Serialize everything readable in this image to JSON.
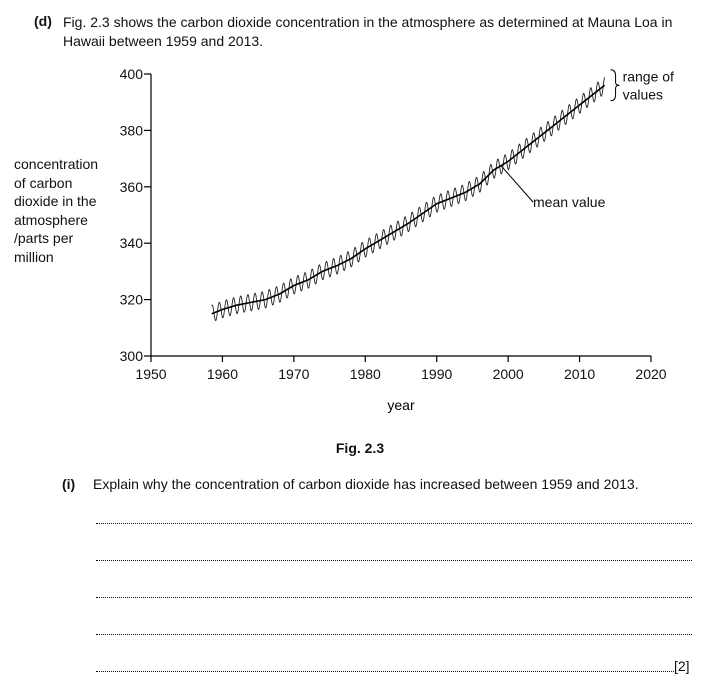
{
  "question": {
    "part_label": "(d)",
    "intro_text": "Fig. 2.3 shows the carbon dioxide concentration in the atmosphere as determined at Mauna Loa in Hawaii between 1959 and 2013.",
    "figure_caption": "Fig. 2.3",
    "subpart_label": "(i)",
    "subpart_text": "Explain why the concentration of carbon dioxide has increased between 1959 and 2013.",
    "answer_line_count": 5,
    "marks_label": "[2]"
  },
  "chart_data": {
    "type": "line",
    "xlabel": "year",
    "ylabel": "concentration\nof carbon\ndioxide in the\natmosphere\n/parts per\nmillion",
    "xlim": [
      1950,
      2020
    ],
    "ylim": [
      300,
      400
    ],
    "x_ticks": [
      1950,
      1960,
      1970,
      1980,
      1990,
      2000,
      2010,
      2020
    ],
    "y_ticks": [
      300,
      320,
      340,
      360,
      380,
      400
    ],
    "annotations": [
      {
        "text": "range of\nvalues",
        "points_to": "seasonal oscillation"
      },
      {
        "text": "mean value",
        "points_to": "mean line"
      }
    ],
    "series": [
      {
        "name": "mean value",
        "x": [
          1958.5,
          1960,
          1962,
          1964,
          1966,
          1968,
          1970,
          1972,
          1974,
          1976,
          1978,
          1980,
          1982,
          1984,
          1986,
          1988,
          1990,
          1992,
          1994,
          1996,
          1998,
          2000,
          2002,
          2004,
          2006,
          2008,
          2010,
          2012,
          2013.5
        ],
        "y": [
          315,
          316.5,
          318,
          319,
          320,
          322,
          325,
          327,
          330,
          332,
          334.5,
          338,
          341,
          344,
          347,
          350.5,
          354,
          356,
          358,
          361,
          366,
          369,
          373,
          377,
          381,
          385,
          389,
          393,
          396
        ]
      }
    ],
    "seasonal_amplitude": 3
  }
}
